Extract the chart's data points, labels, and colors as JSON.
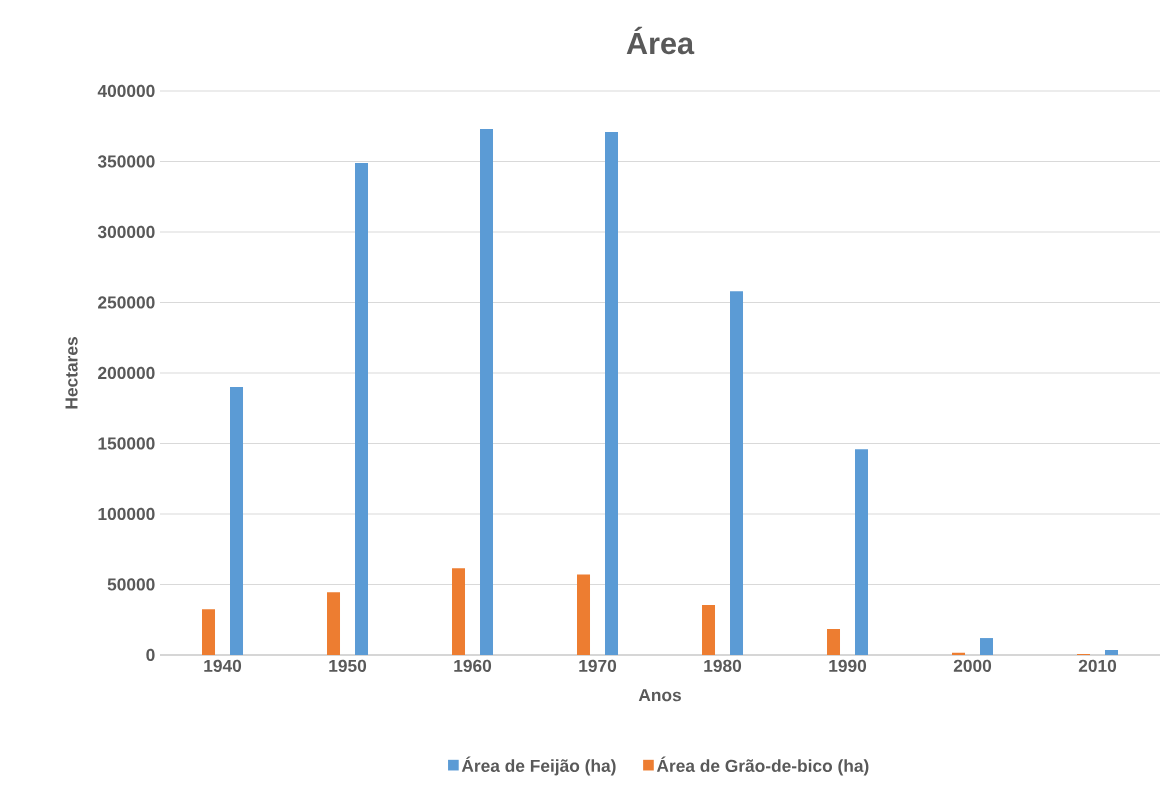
{
  "chart_data": {
    "type": "bar",
    "title": "Área",
    "xlabel": "Anos",
    "ylabel": "Hectares",
    "categories": [
      "1940",
      "1950",
      "1960",
      "1970",
      "1980",
      "1990",
      "2000",
      "2010"
    ],
    "series": [
      {
        "name": "Área de Feijão (ha)",
        "color": "#5b9bd5",
        "values": [
          190000,
          349000,
          373000,
          371000,
          258000,
          146000,
          12000,
          3500
        ]
      },
      {
        "name": "Área de Grão-de-bico (ha)",
        "color": "#ed7d31",
        "values": [
          32500,
          44500,
          61500,
          57000,
          35500,
          18500,
          1500,
          700
        ]
      }
    ],
    "ylim": [
      0,
      400000
    ],
    "yticks": [
      0,
      50000,
      100000,
      150000,
      200000,
      250000,
      300000,
      350000,
      400000
    ],
    "grid": "y",
    "legend": "bottom"
  }
}
